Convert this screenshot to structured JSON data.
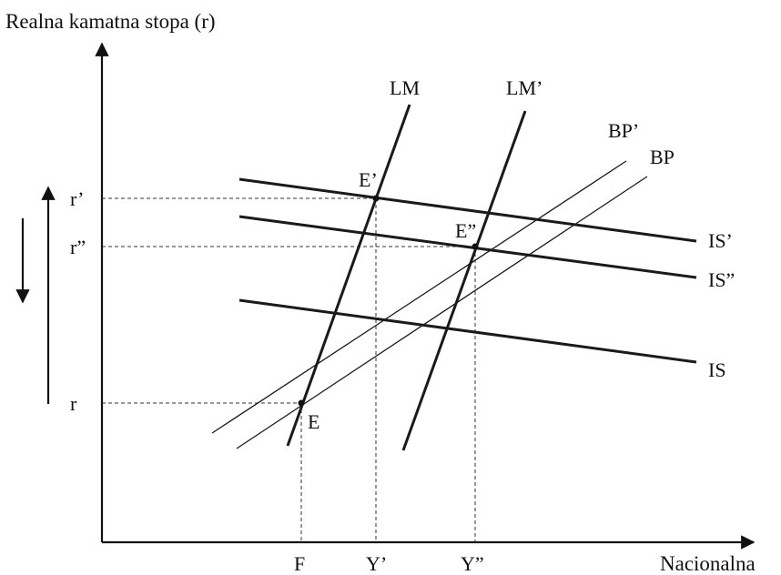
{
  "diagram": {
    "y_axis_title": "Realna kamatna stopa (r)",
    "x_axis_title": "Nacionalna",
    "y_ticks": {
      "r_prime": "r’",
      "r_double": "r”",
      "r": "r"
    },
    "x_ticks": {
      "F": "F",
      "Y_prime": "Y’",
      "Y_double": "Y”"
    },
    "curves": {
      "LM": "LM",
      "LM_prime": "LM’",
      "BP_prime": "BP’",
      "BP": "BP",
      "IS_prime": "IS’",
      "IS_double": "IS”",
      "IS": "IS"
    },
    "points": {
      "E_prime": "E’",
      "E_double": "E”",
      "E": "E"
    }
  }
}
